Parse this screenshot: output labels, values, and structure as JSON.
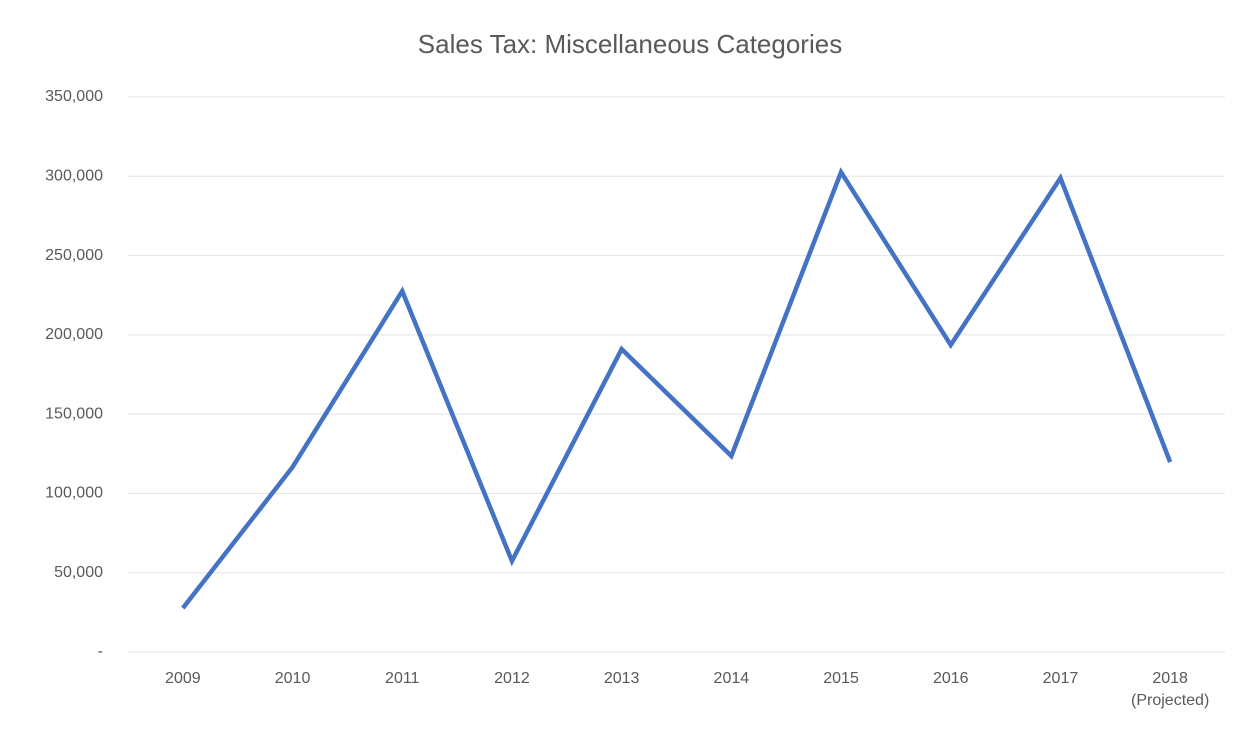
{
  "chart_data": {
    "type": "line",
    "title": "Sales Tax: Miscellaneous Categories",
    "categories": [
      "2009",
      "2010",
      "2011",
      "2012",
      "2013",
      "2014",
      "2015",
      "2016",
      "2017",
      "2018\n(Projected)"
    ],
    "series": [
      {
        "name": "Sales Tax",
        "color": "#4472c4",
        "values": [
          27700,
          116600,
          227600,
          57400,
          191000,
          123600,
          302600,
          193600,
          298900,
          119800
        ]
      }
    ],
    "ylim": [
      0,
      350000
    ],
    "yticks": [
      {
        "value": 0,
        "label": "-"
      },
      {
        "value": 50000,
        "label": "50,000"
      },
      {
        "value": 100000,
        "label": "100,000"
      },
      {
        "value": 150000,
        "label": "150,000"
      },
      {
        "value": 200000,
        "label": "200,000"
      },
      {
        "value": 250000,
        "label": "250,000"
      },
      {
        "value": 300000,
        "label": "300,000"
      },
      {
        "value": 350000,
        "label": "350,000"
      }
    ],
    "grid": true
  }
}
